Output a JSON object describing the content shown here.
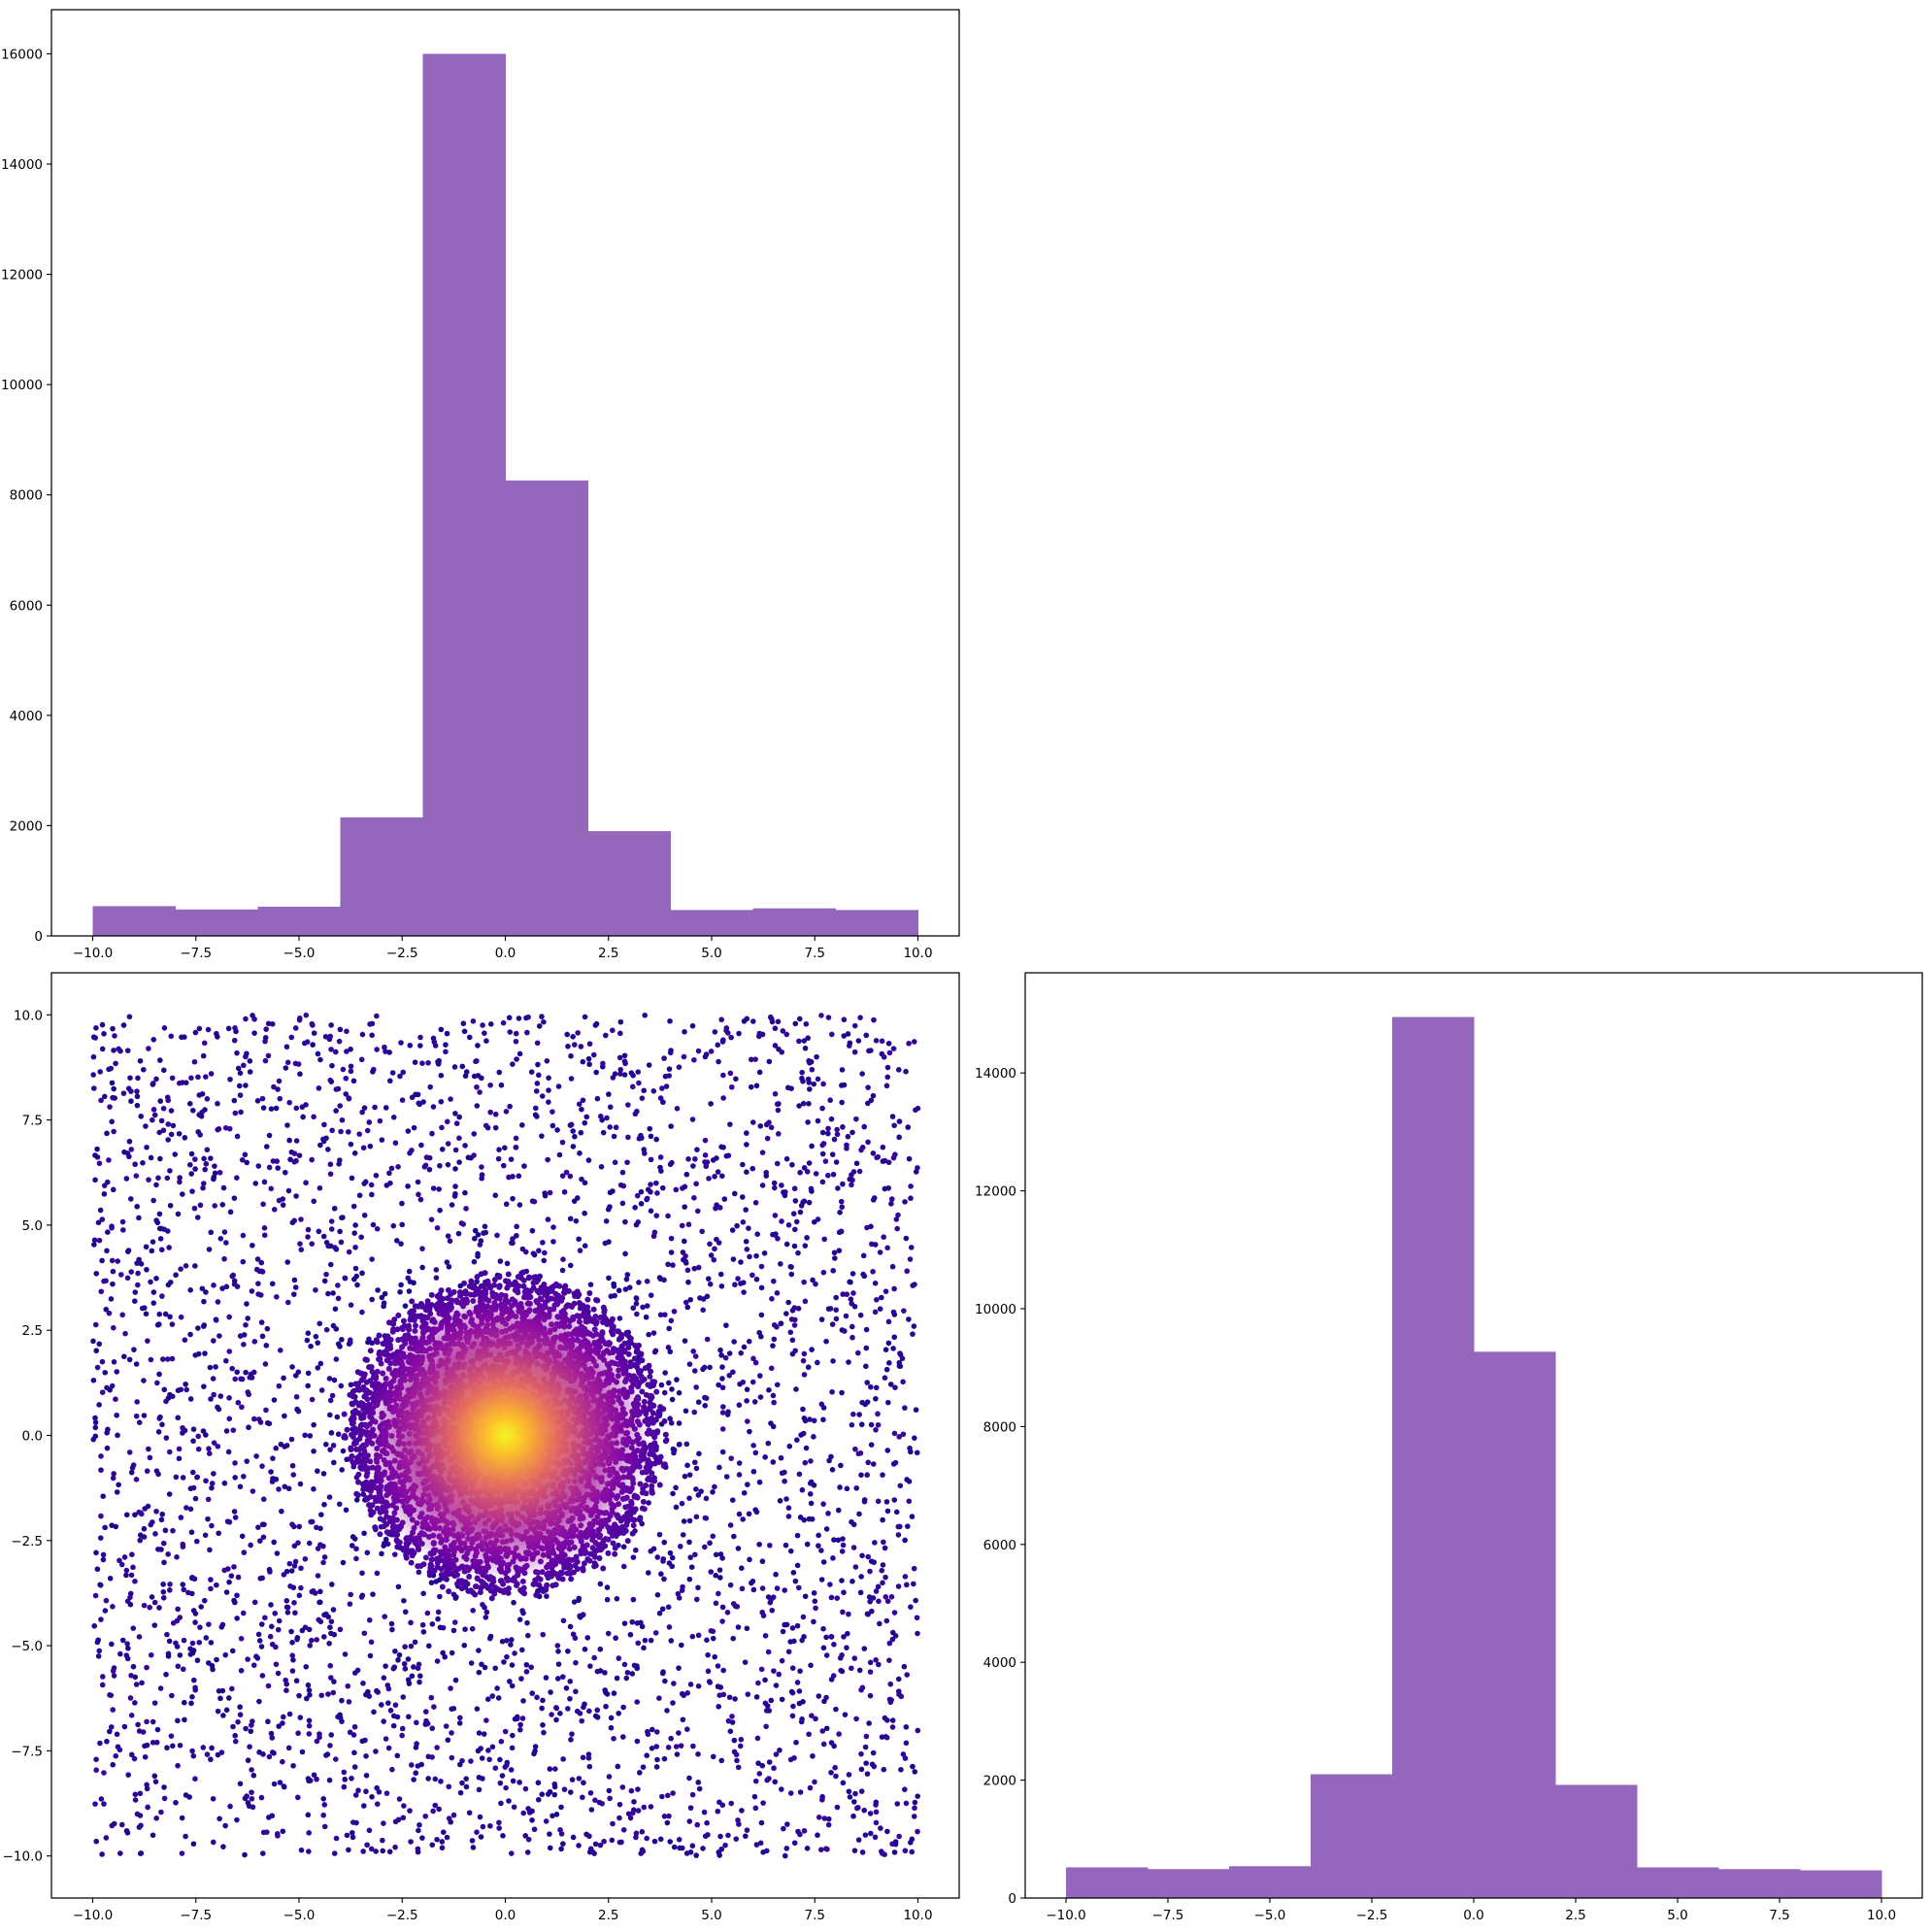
{
  "colors": {
    "bar_fill": "#9467bd",
    "scatter_cmap_low": "#1a0787",
    "scatter_cmap_mid": "#8d0ba5",
    "scatter_cmap_high": "#f0f921",
    "frame": "#000000"
  },
  "chart_data": [
    {
      "id": "top-left-histogram",
      "type": "bar",
      "title": "",
      "xlabel": "",
      "ylabel": "",
      "bin_edges": [
        -10,
        -8,
        -6,
        -4,
        -2,
        0,
        2,
        4,
        6,
        8,
        10
      ],
      "values": [
        540,
        480,
        530,
        2150,
        16000,
        8260,
        1900,
        470,
        500,
        470
      ],
      "xlim": [
        -11,
        11
      ],
      "ylim": [
        0,
        16800
      ],
      "xticks": [
        -10.0,
        -7.5,
        -5.0,
        -2.5,
        0.0,
        2.5,
        5.0,
        7.5,
        10.0
      ],
      "xtick_labels": [
        "−10.0",
        "−7.5",
        "−5.0",
        "−2.5",
        "0.0",
        "2.5",
        "5.0",
        "7.5",
        "10.0"
      ],
      "yticks": [
        0,
        2000,
        4000,
        6000,
        8000,
        10000,
        12000,
        14000,
        16000
      ],
      "ytick_labels": [
        "0",
        "2000",
        "4000",
        "6000",
        "8000",
        "10000",
        "12000",
        "14000",
        "16000"
      ],
      "grid": false,
      "color": "#9467bd"
    },
    {
      "id": "bottom-left-scatter",
      "type": "scatter",
      "title": "",
      "xlabel": "",
      "ylabel": "",
      "xlim": [
        -11,
        11
      ],
      "ylim": [
        -11,
        11
      ],
      "xticks": [
        -10.0,
        -7.5,
        -5.0,
        -2.5,
        0.0,
        2.5,
        5.0,
        7.5,
        10.0
      ],
      "xtick_labels": [
        "−10.0",
        "−7.5",
        "−5.0",
        "−2.5",
        "0.0",
        "2.5",
        "5.0",
        "7.5",
        "10.0"
      ],
      "yticks": [
        -10.0,
        -7.5,
        -5.0,
        -2.5,
        0.0,
        2.5,
        5.0,
        7.5,
        10.0
      ],
      "ytick_labels": [
        "−10.0",
        "−7.5",
        "−5.0",
        "−2.5",
        "0.0",
        "2.5",
        "5.0",
        "7.5",
        "10.0"
      ],
      "grid": false,
      "uniform_background": {
        "x_range": [
          -10,
          10
        ],
        "y_range": [
          -10,
          10
        ],
        "count": 5000
      },
      "central_cluster": {
        "center": [
          0,
          0
        ],
        "radius": 3.9,
        "count": 20000
      },
      "colormap": "plasma (density)"
    },
    {
      "id": "bottom-right-histogram",
      "type": "bar",
      "title": "",
      "xlabel": "",
      "ylabel": "",
      "bin_edges": [
        -10,
        -8,
        -6,
        -4,
        -2,
        0,
        2,
        4,
        6,
        8,
        10
      ],
      "values": [
        520,
        490,
        540,
        2100,
        14950,
        9270,
        1920,
        520,
        490,
        470
      ],
      "xlim": [
        -11,
        11
      ],
      "ylim": [
        0,
        15700
      ],
      "xticks": [
        -10.0,
        -7.5,
        -5.0,
        -2.5,
        0.0,
        2.5,
        5.0,
        7.5,
        10.0
      ],
      "xtick_labels": [
        "−10.0",
        "−7.5",
        "−5.0",
        "−2.5",
        "0.0",
        "2.5",
        "5.0",
        "7.5",
        "10.0"
      ],
      "yticks": [
        0,
        2000,
        4000,
        6000,
        8000,
        10000,
        12000,
        14000
      ],
      "ytick_labels": [
        "0",
        "2000",
        "4000",
        "6000",
        "8000",
        "10000",
        "12000",
        "14000"
      ],
      "grid": false,
      "color": "#9467bd"
    }
  ]
}
